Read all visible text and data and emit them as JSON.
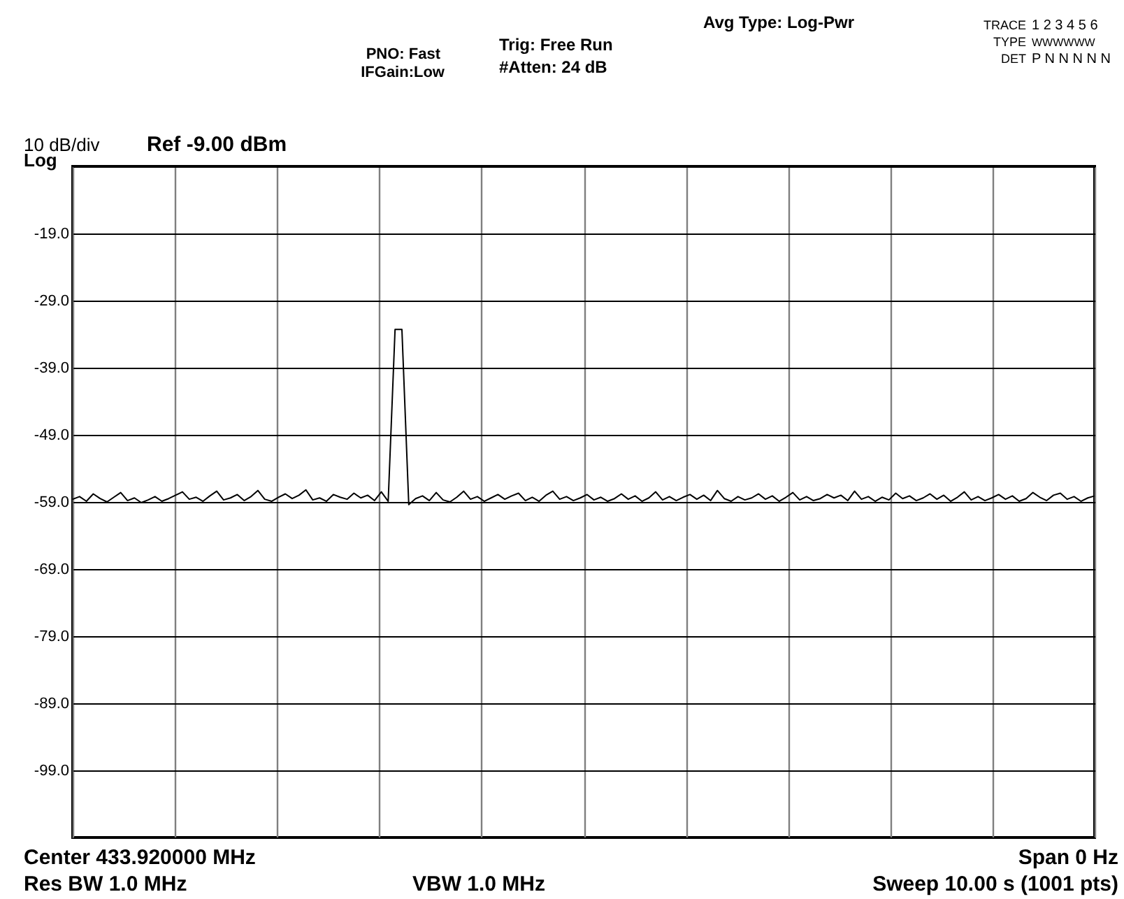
{
  "chart_data": {
    "type": "line",
    "categories": [
      null,
      null,
      null,
      null,
      null,
      null,
      null,
      null,
      null,
      null,
      null,
      null,
      null,
      null,
      null,
      null,
      null,
      null,
      null,
      null,
      null,
      null,
      null,
      null,
      null,
      null,
      null,
      null,
      null,
      null,
      null,
      null,
      null,
      null,
      null,
      null,
      null,
      null,
      null,
      null,
      null,
      null,
      null,
      null,
      null,
      null,
      null,
      null,
      null,
      null,
      null,
      null,
      null,
      null,
      null,
      null,
      null,
      null,
      null,
      null,
      null,
      null,
      null,
      null,
      null,
      null,
      null,
      null,
      null,
      null,
      null,
      null,
      null,
      null,
      null,
      null,
      null,
      null,
      null,
      null,
      null,
      null,
      null,
      null,
      null,
      null,
      null,
      null,
      null,
      null,
      null,
      null,
      null,
      null,
      null,
      null,
      null,
      null,
      null,
      null,
      null,
      null,
      null,
      null,
      null,
      null,
      null,
      null,
      null,
      null,
      null,
      null,
      null,
      null,
      null,
      null,
      null,
      null,
      null,
      null,
      null,
      null,
      null,
      null,
      null,
      null,
      null,
      null,
      null,
      null,
      null,
      null,
      null,
      null,
      null,
      null,
      null,
      null,
      null,
      null,
      null,
      null,
      null,
      null,
      null,
      null,
      null,
      null,
      null,
      null
    ],
    "series": [
      {
        "color": "#000000",
        "values": [
          -58.6,
          -58.2,
          -58.9,
          -57.8,
          -58.5,
          -59.0,
          -58.3,
          -57.6,
          -58.8,
          -58.4,
          -59.1,
          -58.7,
          -58.2,
          -58.9,
          -58.5,
          -58.0,
          -57.5,
          -58.6,
          -58.3,
          -58.9,
          -58.1,
          -57.4,
          -58.7,
          -58.4,
          -57.9,
          -58.8,
          -58.2,
          -57.3,
          -58.6,
          -58.9,
          -58.3,
          -57.8,
          -58.5,
          -58.0,
          -57.2,
          -58.7,
          -58.4,
          -58.9,
          -57.9,
          -58.3,
          -58.6,
          -57.7,
          -58.4,
          -58.0,
          -58.8,
          -57.5,
          -58.9,
          -33.3,
          -33.3,
          -59.4,
          -58.5,
          -58.1,
          -58.8,
          -57.6,
          -58.7,
          -59.0,
          -58.3,
          -57.4,
          -58.6,
          -58.2,
          -58.9,
          -58.4,
          -57.9,
          -58.6,
          -58.1,
          -57.7,
          -58.8,
          -58.3,
          -58.9,
          -58.0,
          -57.4,
          -58.6,
          -58.2,
          -58.8,
          -58.4,
          -57.9,
          -58.7,
          -58.3,
          -58.9,
          -58.5,
          -57.8,
          -58.6,
          -58.1,
          -58.9,
          -58.4,
          -57.5,
          -58.7,
          -58.2,
          -58.8,
          -58.3,
          -57.9,
          -58.6,
          -58.0,
          -58.8,
          -57.3,
          -58.5,
          -58.9,
          -58.2,
          -58.7,
          -58.4,
          -57.8,
          -58.6,
          -58.1,
          -58.9,
          -58.3,
          -57.6,
          -58.7,
          -58.2,
          -58.8,
          -58.5,
          -57.9,
          -58.4,
          -58.0,
          -58.8,
          -57.4,
          -58.6,
          -58.2,
          -58.9,
          -58.3,
          -58.7,
          -57.7,
          -58.5,
          -58.1,
          -58.8,
          -58.4,
          -57.8,
          -58.6,
          -58.0,
          -58.9,
          -58.3,
          -57.5,
          -58.7,
          -58.2,
          -58.8,
          -58.4,
          -57.9,
          -58.6,
          -58.1,
          -58.9,
          -58.5,
          -57.6,
          -58.3,
          -58.8,
          -58.0,
          -57.7,
          -58.6,
          -58.2,
          -58.9,
          -58.4,
          -58.1
        ]
      }
    ],
    "ylim": [
      -109,
      -9
    ],
    "yticks": [
      {
        "value": -9,
        "label": null
      },
      {
        "value": -19,
        "label": "-19.0"
      },
      {
        "value": -29,
        "label": "-29.0"
      },
      {
        "value": -39,
        "label": "-39.0"
      },
      {
        "value": -49,
        "label": "-49.0"
      },
      {
        "value": -59,
        "label": "-59.0"
      },
      {
        "value": -69,
        "label": "-69.0"
      },
      {
        "value": -79,
        "label": "-79.0"
      },
      {
        "value": -89,
        "label": "-89.0"
      },
      {
        "value": -99,
        "label": "-99.0"
      },
      {
        "value": -109,
        "label": null
      }
    ],
    "grid": true,
    "tick_labels": "y",
    "marker": "none",
    "line_style": "solid",
    "annotations": [
      "10 dB/div",
      "Log",
      "Ref -9.00 dBm",
      "PNO: Fast",
      "IFGain:Low",
      "Trig: Free Run",
      "#Atten: 24 dB",
      "Avg Type: Log-Pwr",
      "TRACE",
      "1 2 3 4 5 6",
      "TYPE",
      "WWWWWW",
      "DET",
      "P N N N N N",
      "Center 433.920000 MHz",
      "Span 0 Hz",
      "Res BW 1.0 MHz",
      "VBW 1.0 MHz",
      "Sweep  10.00 s (1001 pts)"
    ]
  }
}
